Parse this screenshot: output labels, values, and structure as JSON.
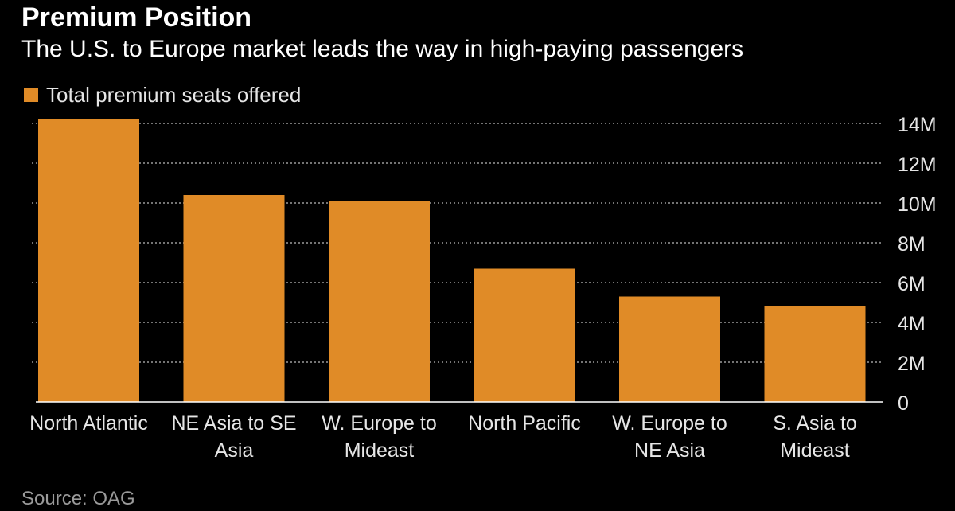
{
  "title": "Premium Position",
  "subtitle": "The U.S. to Europe market leads the way in high-paying passengers",
  "source": "Source: OAG",
  "colors": {
    "background": "#000000",
    "bar": "#e08b27",
    "text": "#ffffff",
    "tick_text": "#e6e6e6",
    "gridline": "#9a9a9a",
    "source_text": "#9a9a9a"
  },
  "chart_data": {
    "type": "bar",
    "categories": [
      [
        "North Atlantic"
      ],
      [
        "NE Asia to SE",
        "Asia"
      ],
      [
        "W. Europe to",
        "Mideast"
      ],
      [
        "North Pacific"
      ],
      [
        "W. Europe to",
        "NE Asia"
      ],
      [
        "S. Asia to",
        "Mideast"
      ]
    ],
    "series": [
      {
        "name": "Total premium seats offered",
        "values": [
          14200000,
          10400000,
          10100000,
          6700000,
          5300000,
          4800000
        ]
      }
    ],
    "ylim": [
      0,
      14000000
    ],
    "yticks": [
      0,
      2000000,
      4000000,
      6000000,
      8000000,
      10000000,
      12000000,
      14000000
    ],
    "ytick_labels": [
      "0",
      "2M",
      "4M",
      "6M",
      "8M",
      "10M",
      "12M",
      "14M"
    ],
    "y_axis_side": "right",
    "grid": true,
    "legend_position": "top-left"
  }
}
